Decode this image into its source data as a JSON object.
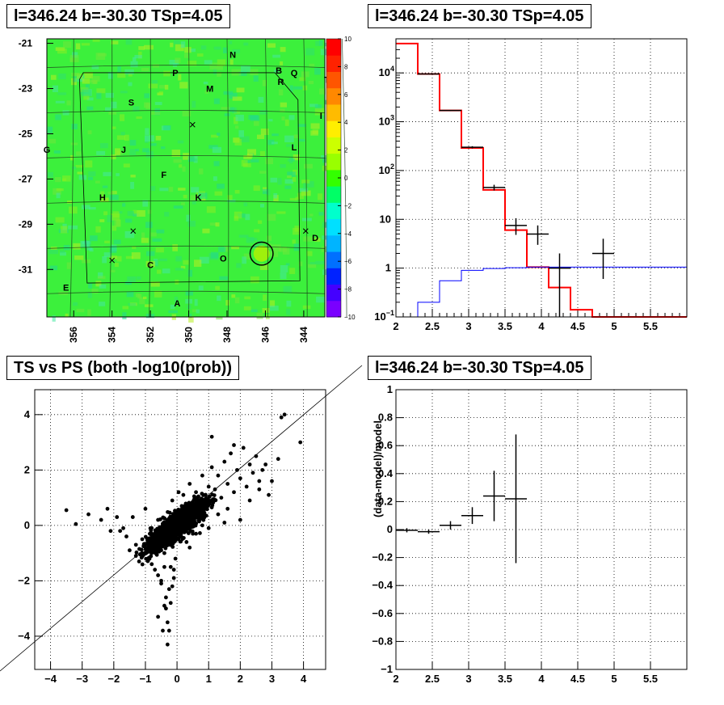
{
  "chart_data": [
    {
      "type": "heatmap",
      "title": "l=346.24 b=-30.30 TSp=4.05",
      "x_ticks": [
        "356",
        "354",
        "352",
        "350",
        "348",
        "346",
        "344"
      ],
      "y_ticks": [
        "-21",
        "-23",
        "-25",
        "-27",
        "-29",
        "-31"
      ],
      "xlim": [
        357.4,
        342.9
      ],
      "ylim": [
        -33.1,
        -20.8
      ],
      "colorbar": {
        "range": [
          -10,
          10
        ],
        "ticks": [
          "10",
          "8",
          "6",
          "4",
          "2",
          "0",
          "−2",
          "−4",
          "−6",
          "−8",
          "−10"
        ],
        "colors": [
          "#7a00ff",
          "#4400ff",
          "#0022ff",
          "#0070ff",
          "#00b4ff",
          "#00e0ff",
          "#00ffcc",
          "#00ff66",
          "#33ff00",
          "#99ff00",
          "#ccff00",
          "#ffee00",
          "#ffbb00",
          "#ff8800",
          "#ff5500",
          "#ff2200",
          "#ff0000"
        ]
      },
      "background_color": "#3cf03c",
      "labels": [
        {
          "text": "N",
          "x": 347.7,
          "y": -21.5
        },
        {
          "text": "B",
          "x": 345.3,
          "y": -22.2
        },
        {
          "text": "Q",
          "x": 344.5,
          "y": -22.3
        },
        {
          "text": "T",
          "x": 342.8,
          "y": -22.6
        },
        {
          "text": "P",
          "x": 350.7,
          "y": -22.3
        },
        {
          "text": "R",
          "x": 345.2,
          "y": -22.7
        },
        {
          "text": "M",
          "x": 348.9,
          "y": -23.0
        },
        {
          "text": "S",
          "x": 353.0,
          "y": -23.6
        },
        {
          "text": "I",
          "x": 343.1,
          "y": -24.2
        },
        {
          "text": "G",
          "x": 357.4,
          "y": -25.7
        },
        {
          "text": "J",
          "x": 353.4,
          "y": -25.7
        },
        {
          "text": "L",
          "x": 344.5,
          "y": -25.6
        },
        {
          "text": "F",
          "x": 351.3,
          "y": -26.8
        },
        {
          "text": "H",
          "x": 354.5,
          "y": -27.8
        },
        {
          "text": "K",
          "x": 349.5,
          "y": -27.8
        },
        {
          "text": "D",
          "x": 343.4,
          "y": -29.6
        },
        {
          "text": "O",
          "x": 348.2,
          "y": -30.5
        },
        {
          "text": "C",
          "x": 352.0,
          "y": -30.8
        },
        {
          "text": "E",
          "x": 356.4,
          "y": -31.8
        },
        {
          "text": "A",
          "x": 350.6,
          "y": -32.5
        }
      ],
      "crosses": [
        {
          "x": 349.8,
          "y": -24.6
        },
        {
          "x": 352.9,
          "y": -29.3
        },
        {
          "x": 354.0,
          "y": -30.6
        },
        {
          "x": 343.9,
          "y": -29.3
        }
      ],
      "circle": {
        "x": 346.2,
        "y": -30.3,
        "r": 0.6
      }
    },
    {
      "type": "line",
      "title": "l=346.24 b=-30.30 TSp=4.05",
      "xlim": [
        2.0,
        6.0
      ],
      "ylim": [
        0.1,
        50000
      ],
      "yscale": "log",
      "x_ticks": [
        2,
        2.5,
        3,
        3.5,
        4,
        4.5,
        5,
        5.5
      ],
      "x_tick_labels": [
        "2",
        "2.5",
        "3",
        "3.5",
        "4",
        "4.5",
        "5",
        "5.5"
      ],
      "y_ticks": [
        0.1,
        1,
        10,
        100,
        1000,
        10000
      ],
      "y_tick_labels": [
        {
          "b": "10",
          "e": "−1"
        },
        {
          "b": "1",
          "e": ""
        },
        {
          "b": "10",
          "e": ""
        },
        {
          "b": "10",
          "e": "2"
        },
        {
          "b": "10",
          "e": "3"
        },
        {
          "b": "10",
          "e": "4"
        }
      ],
      "grid": true,
      "series": [
        {
          "color": "#ff0000",
          "edges": [
            2.0,
            2.3,
            2.6,
            2.9,
            3.2,
            3.5,
            3.8,
            4.1,
            4.4,
            4.7,
            5.0,
            6.0
          ],
          "values": [
            40000,
            9500,
            1700,
            290,
            40,
            6.0,
            1.05,
            0.4,
            0.14,
            0.1,
            0.1
          ]
        },
        {
          "color": "#0000ff",
          "edges": [
            2.3,
            2.6,
            2.9,
            3.2,
            3.5,
            3.8,
            6.0
          ],
          "values": [
            0.2,
            0.55,
            0.9,
            0.98,
            1.02,
            1.05
          ]
        },
        {
          "type": "points",
          "color": "#000000",
          "x": [
            2.45,
            2.75,
            3.05,
            3.35,
            3.65,
            3.95,
            4.25,
            4.85
          ],
          "xerr": [
            0.15,
            0.15,
            0.15,
            0.15,
            0.15,
            0.15,
            0.15,
            0.15
          ],
          "y": [
            9500,
            1700,
            300,
            45,
            7.5,
            5.0,
            1.0,
            2.0
          ],
          "ylo": [
            9300,
            1660,
            285,
            39,
            4.8,
            3.0,
            0.1,
            0.6
          ],
          "yhi": [
            9700,
            1740,
            315,
            51,
            10.5,
            7.5,
            2.0,
            4.0
          ]
        }
      ]
    },
    {
      "type": "scatter",
      "title": "TS vs PS (both -log10(prob))",
      "xlim": [
        -4.5,
        4.7
      ],
      "ylim": [
        -5.2,
        4.9
      ],
      "x_ticks": [
        -4,
        -3,
        -2,
        -1,
        0,
        1,
        2,
        3,
        4
      ],
      "x_tick_labels": [
        "−4",
        "−3",
        "−2",
        "−1",
        "0",
        "1",
        "2",
        "3",
        "4"
      ],
      "y_ticks": [
        -4,
        -2,
        0,
        2,
        4
      ],
      "y_tick_labels": [
        "−4",
        "−2",
        "0",
        "2",
        "4"
      ],
      "grid": true,
      "point_color": "#000000",
      "diagonal": true,
      "x": [
        -3.5,
        -3.2,
        -2.8,
        -2.4,
        -2.2,
        -1.9,
        -1.6,
        -1.8,
        -1.5,
        -1.3,
        -1.4,
        -1.1,
        -1.2,
        -0.9,
        -1.0,
        -0.8,
        -0.7,
        -0.6,
        -0.5,
        -0.4,
        -0.35,
        -0.3,
        -0.25,
        -0.2,
        -0.15,
        -0.1,
        -0.05,
        0.0,
        0.05,
        0.1,
        0.15,
        0.2,
        0.3,
        0.4,
        0.5,
        0.6,
        0.7,
        0.8,
        0.9,
        1.0,
        1.1,
        1.2,
        1.3,
        1.4,
        1.5,
        1.6,
        1.7,
        1.8,
        1.9,
        2.0,
        2.1,
        2.2,
        2.3,
        2.4,
        2.5,
        2.6,
        2.7,
        2.8,
        3.0,
        3.3,
        3.4,
        3.9,
        -0.6,
        -0.5,
        -0.45,
        -0.4,
        -0.3,
        -0.25,
        -0.3,
        -0.4,
        -0.35,
        -0.2,
        -0.15,
        -0.1,
        -0.5,
        -0.6,
        -0.8,
        -1.1,
        -0.2,
        0.1,
        0.5,
        0.8,
        1.3,
        1.6,
        2.3,
        2.6,
        2.0,
        1.5,
        1.0,
        0.6,
        0.3,
        -0.7,
        -1.3,
        -1.7,
        -2.1,
        0.2,
        0.4,
        -0.1,
        1.8,
        2.9,
        3.2,
        1.1
      ],
      "y": [
        0.55,
        0.05,
        0.4,
        0.2,
        0.6,
        0.3,
        -0.4,
        -0.2,
        -0.9,
        -1.1,
        0.3,
        -0.5,
        -1.3,
        -0.8,
        0.6,
        -0.3,
        -1.6,
        0.2,
        -2.0,
        -1.0,
        -2.6,
        -0.6,
        -2.3,
        -1.5,
        0.9,
        -0.3,
        -1.2,
        0.4,
        1.2,
        0.1,
        0.7,
        1.1,
        0.3,
        1.5,
        0.6,
        1.2,
        0.9,
        1.8,
        0.8,
        1.4,
        2.1,
        1.3,
        1.8,
        1.0,
        2.3,
        1.5,
        2.6,
        1.2,
        2.0,
        1.7,
        2.8,
        1.4,
        2.2,
        1.9,
        2.5,
        1.6,
        2.0,
        2.2,
        1.6,
        3.9,
        4.0,
        3.0,
        -3.3,
        -2.1,
        -3.8,
        -2.9,
        -3.5,
        -3.8,
        -4.3,
        -1.5,
        -3.0,
        -2.8,
        -2.2,
        -1.9,
        -0.9,
        -1.8,
        -1.4,
        -1.0,
        -0.5,
        -0.2,
        -0.3,
        0.0,
        0.4,
        0.6,
        0.9,
        1.3,
        0.2,
        0.1,
        -0.1,
        -0.3,
        -0.6,
        -0.9,
        -0.7,
        -0.1,
        -0.2,
        0.6,
        -0.8,
        -1.6,
        2.9,
        1.1,
        2.4,
        3.2
      ]
    },
    {
      "type": "scatter",
      "title": "l=346.24 b=-30.30 TSp=4.05",
      "ylabel": "(data-model)/model",
      "xlim": [
        2.0,
        6.0
      ],
      "ylim": [
        -1.0,
        1.0
      ],
      "x_ticks": [
        2,
        2.5,
        3,
        3.5,
        4,
        4.5,
        5,
        5.5
      ],
      "x_tick_labels": [
        "2",
        "2.5",
        "3",
        "3.5",
        "4",
        "4.5",
        "5",
        "5.5"
      ],
      "y_ticks": [
        -1,
        -0.8,
        -0.6,
        -0.4,
        -0.2,
        0,
        0.2,
        0.4,
        0.6,
        0.8,
        1
      ],
      "y_tick_labels": [
        "−1",
        "−0.8",
        "−0.6",
        "−0.4",
        "−0.2",
        "0",
        "0.2",
        "0.4",
        "0.6",
        "0.8",
        "1"
      ],
      "grid": true,
      "series": [
        {
          "type": "points",
          "color": "#000000",
          "x": [
            2.15,
            2.45,
            2.75,
            3.05,
            3.35,
            3.65
          ],
          "xerr": [
            0.15,
            0.15,
            0.15,
            0.15,
            0.15,
            0.15
          ],
          "y": [
            -0.005,
            -0.015,
            0.03,
            0.1,
            0.24,
            0.22
          ],
          "ylo": [
            -0.02,
            -0.03,
            0.0,
            0.04,
            0.06,
            -0.24
          ],
          "yhi": [
            0.01,
            0.0,
            0.06,
            0.16,
            0.42,
            0.68
          ]
        }
      ]
    }
  ]
}
